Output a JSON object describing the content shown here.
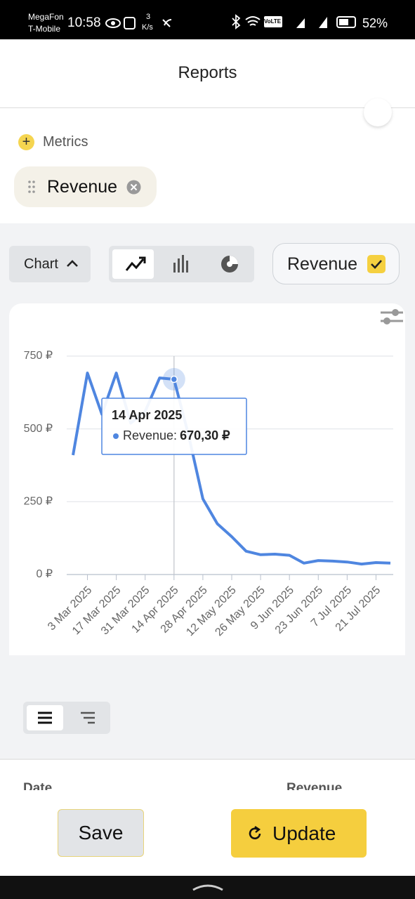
{
  "status_bar": {
    "carrier_1": "MegaFon",
    "carrier_2": "T-Mobile",
    "time": "10:58",
    "speed_value": "3",
    "speed_unit": "K/s",
    "volte": "VoLTE",
    "battery": "52%"
  },
  "header": {
    "title": "Reports"
  },
  "metrics": {
    "label": "Metrics",
    "chip": "Revenue"
  },
  "controls": {
    "view": "Chart",
    "legend_toggle": "Revenue"
  },
  "chart_data": {
    "type": "line",
    "categories": [
      null,
      "3 Mar 2025",
      null,
      "17 Mar 2025",
      null,
      "31 Mar 2025",
      null,
      "14 Apr 2025",
      null,
      "28 Apr 2025",
      null,
      "12 May 2025",
      null,
      "26 May 2025",
      null,
      "9 Jun 2025",
      null,
      "23 Jun 2025",
      null,
      "7 Jul 2025",
      null,
      "21 Jul 2025",
      null
    ],
    "series": [
      {
        "name": "Revenue",
        "color": "#4f86e0",
        "values": [
          410,
          692,
          550,
          692,
          520,
          560,
          675,
          670.3,
          480,
          260,
          174,
          130,
          80,
          68,
          70,
          66,
          39,
          48,
          46,
          43,
          36,
          41,
          39
        ],
        "value_labels": [
          null,
          null,
          null,
          null,
          null,
          null,
          null,
          "670,30 ₽",
          null,
          null,
          null,
          null,
          null,
          null,
          null,
          null,
          null,
          null,
          null,
          null,
          null,
          null,
          null
        ]
      }
    ],
    "tooltip": {
      "label": "Revenue:"
    },
    "ylim": [
      0,
      750
    ],
    "yticks": [
      {
        "value": 0,
        "label": "0 ₽"
      },
      {
        "value": 250,
        "label": "250 ₽"
      },
      {
        "value": 500,
        "label": "500 ₽"
      },
      {
        "value": 750,
        "label": "750 ₽"
      }
    ],
    "grid": true
  },
  "table": {
    "columns": [
      "Date",
      "Revenue"
    ]
  },
  "actions": {
    "save": "Save",
    "update": "Update"
  }
}
